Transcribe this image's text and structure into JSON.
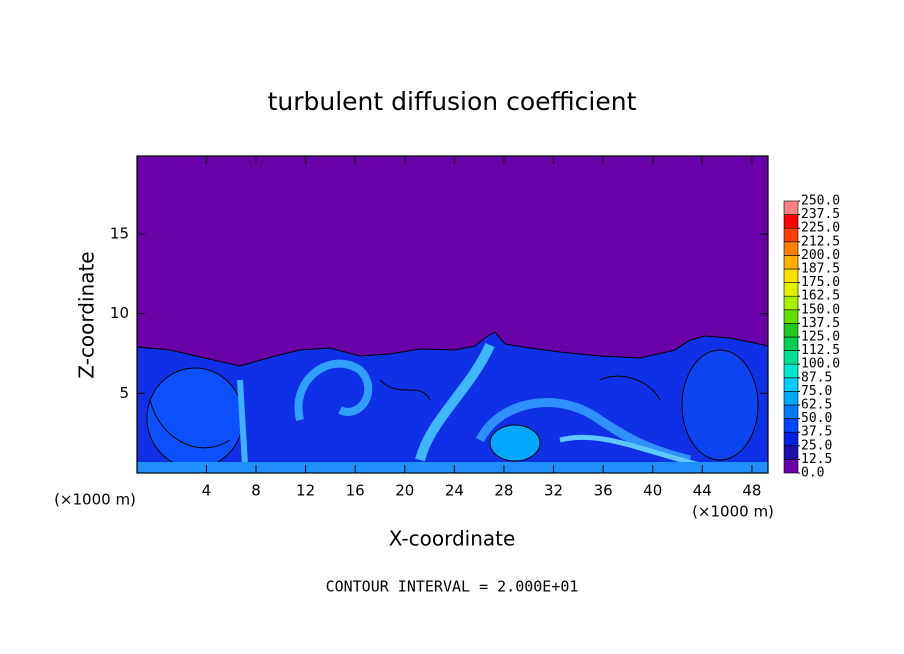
{
  "chart_data": {
    "type": "contour",
    "title": "turbulent diffusion coefficient",
    "xlabel": "X-coordinate",
    "ylabel": "Z-coordinate",
    "x_unit_label": "(×1000 m)",
    "footer": "CONTOUR INTERVAL = 2.000E+01",
    "xlim": [
      -1.6,
      49.3
    ],
    "ylim": [
      0,
      19.9
    ],
    "xticks": [
      4,
      8,
      12,
      16,
      20,
      24,
      28,
      32,
      36,
      40,
      44,
      48
    ],
    "yticks": [
      5,
      10,
      15
    ],
    "colorbar": {
      "levels": [
        {
          "value": 0,
          "label": "0.0"
        },
        12.5,
        {
          "value": 25,
          "label": "25.0"
        },
        37.5,
        {
          "value": 50,
          "label": "50.0"
        },
        62.5,
        {
          "value": 75,
          "label": "75.0"
        },
        87.5,
        {
          "value": 100,
          "label": "100.0"
        },
        112.5,
        {
          "value": 125,
          "label": "125.0"
        },
        137.5,
        {
          "value": 150,
          "label": "150.0"
        },
        162.5,
        {
          "value": 175,
          "label": "175.0"
        },
        187.5,
        {
          "value": 200,
          "label": "200.0"
        },
        212.5,
        {
          "value": 225,
          "label": "225.0"
        },
        237.5,
        {
          "value": 250,
          "label": "250.0"
        }
      ],
      "colors": [
        "#6a00a8",
        "#1c10a8",
        "#0020e0",
        "#0048ff",
        "#0078ff",
        "#00a8ff",
        "#00ccff",
        "#00e8d0",
        "#00e090",
        "#00d050",
        "#20c820",
        "#60e000",
        "#a8f000",
        "#e0f000",
        "#ffe000",
        "#ffb000",
        "#ff8000",
        "#ff4000",
        "#ff0000",
        "#ff8080"
      ]
    }
  }
}
